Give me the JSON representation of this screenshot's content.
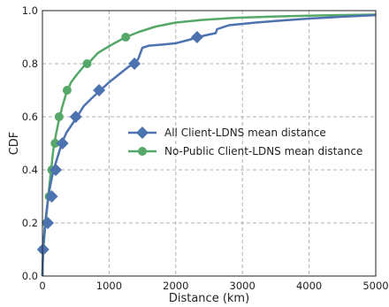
{
  "chart_data": {
    "type": "line",
    "title": "",
    "xlabel": "Distance (km)",
    "ylabel": "CDF",
    "xlim": [
      0,
      5000
    ],
    "ylim": [
      0.0,
      1.0
    ],
    "xticks": [
      "0",
      "1000",
      "2000",
      "3000",
      "4000",
      "5000"
    ],
    "yticks": [
      "0.0",
      "0.2",
      "0.4",
      "0.6",
      "0.8",
      "1.0"
    ],
    "grid": true,
    "legend_position": "center-right",
    "series": [
      {
        "name": "All Client-LDNS mean distance",
        "color": "#4c72b0",
        "marker": "diamond",
        "x": [
          0,
          5,
          15,
          30,
          50,
          70,
          90,
          110,
          140,
          180,
          230,
          290,
          360,
          440,
          520,
          620,
          740,
          870,
          1000,
          1150,
          1300,
          1390,
          1440,
          1470,
          1500,
          1600,
          1800,
          2000,
          2200,
          2330,
          2500,
          2600,
          2620,
          2800,
          3200,
          3600,
          4000,
          4500,
          5000
        ],
        "y": [
          0.0,
          0.06,
          0.12,
          0.17,
          0.22,
          0.26,
          0.3,
          0.33,
          0.37,
          0.41,
          0.45,
          0.5,
          0.54,
          0.57,
          0.6,
          0.64,
          0.67,
          0.7,
          0.73,
          0.76,
          0.79,
          0.8,
          0.82,
          0.84,
          0.86,
          0.868,
          0.872,
          0.877,
          0.89,
          0.9,
          0.91,
          0.915,
          0.93,
          0.945,
          0.955,
          0.963,
          0.97,
          0.977,
          0.983
        ],
        "marker_x": [
          10,
          80,
          140,
          200,
          300,
          500,
          850,
          1380,
          2320
        ],
        "marker_y": [
          0.1,
          0.2,
          0.3,
          0.4,
          0.5,
          0.6,
          0.7,
          0.8,
          0.9
        ]
      },
      {
        "name": "No-Public Client-LDNS mean distance",
        "color": "#55a868",
        "marker": "circle",
        "x": [
          0,
          5,
          20,
          40,
          60,
          80,
          100,
          130,
          160,
          200,
          250,
          300,
          360,
          430,
          520,
          620,
          720,
          830,
          960,
          1100,
          1250,
          1450,
          1700,
          2000,
          2400,
          2900,
          3500,
          4200,
          5000
        ],
        "y": [
          0.0,
          0.06,
          0.12,
          0.18,
          0.23,
          0.28,
          0.33,
          0.4,
          0.47,
          0.53,
          0.59,
          0.64,
          0.69,
          0.73,
          0.76,
          0.79,
          0.81,
          0.84,
          0.86,
          0.88,
          0.9,
          0.92,
          0.94,
          0.955,
          0.965,
          0.973,
          0.978,
          0.982,
          0.985
        ],
        "marker_x": [
          5,
          60,
          100,
          140,
          190,
          250,
          370,
          670,
          1250
        ],
        "marker_y": [
          0.1,
          0.2,
          0.3,
          0.4,
          0.5,
          0.6,
          0.7,
          0.8,
          0.9
        ]
      }
    ]
  }
}
